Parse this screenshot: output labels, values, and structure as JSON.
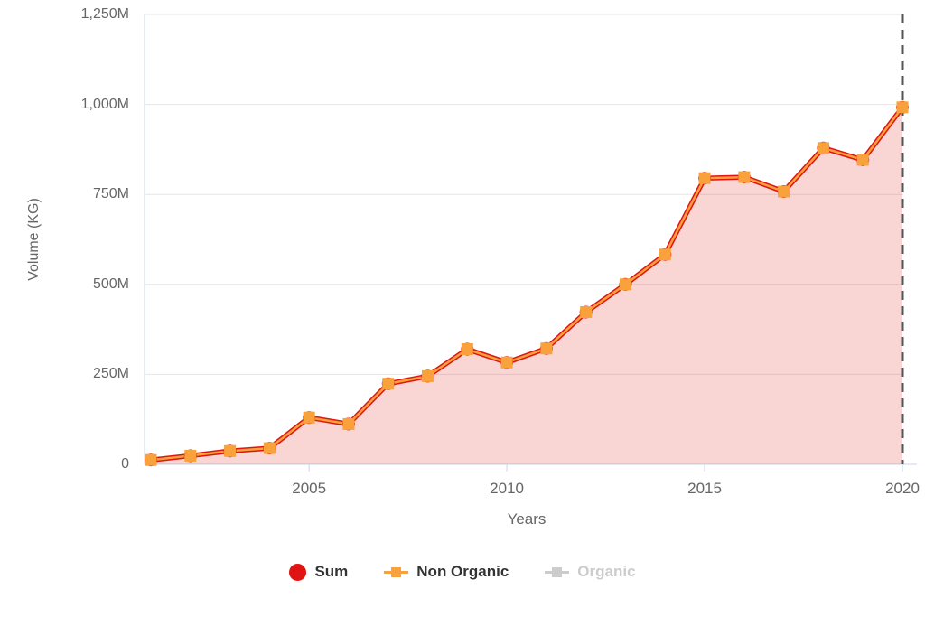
{
  "axes": {
    "y_title": "Volume (KG)",
    "x_title": "Years"
  },
  "legend": {
    "items": [
      {
        "label": "Sum",
        "marker": "circle",
        "color": "#e01412",
        "enabled": true
      },
      {
        "label": "Non Organic",
        "marker": "line-square",
        "color": "#f9a23b",
        "enabled": true
      },
      {
        "label": "Organic",
        "marker": "line-square",
        "color": "#cccccc",
        "enabled": false
      }
    ]
  },
  "chart_data": {
    "type": "area",
    "title": "",
    "xlabel": "Years",
    "ylabel": "Volume (KG)",
    "x": [
      2001,
      2002,
      2003,
      2004,
      2005,
      2006,
      2007,
      2008,
      2009,
      2010,
      2011,
      2012,
      2013,
      2014,
      2015,
      2016,
      2017,
      2018,
      2019,
      2020
    ],
    "series": [
      {
        "name": "Sum",
        "color": "#e01412",
        "marker": "circle",
        "marker_size": 14,
        "line_width": 5.5,
        "area_fill": "rgba(224,20,18,0.18)",
        "visible": true,
        "values": [
          12,
          24,
          37,
          45,
          130,
          112,
          224,
          245,
          320,
          283,
          322,
          423,
          500,
          583,
          795,
          798,
          758,
          879,
          846,
          992
        ]
      },
      {
        "name": "Non Organic",
        "color": "#f9a23b",
        "marker": "square",
        "marker_size": 13,
        "line_width": 2.5,
        "area_fill": null,
        "visible": true,
        "values": [
          12,
          24,
          37,
          45,
          130,
          112,
          224,
          245,
          320,
          283,
          322,
          423,
          500,
          583,
          795,
          798,
          758,
          879,
          846,
          992
        ]
      },
      {
        "name": "Organic",
        "color": "#cccccc",
        "marker": "square",
        "marker_size": 13,
        "line_width": 2.5,
        "area_fill": null,
        "visible": false,
        "values": null
      }
    ],
    "y_unit": "M",
    "ylim": [
      0,
      1250
    ],
    "yticks": [
      {
        "value": 0,
        "label": "0"
      },
      {
        "value": 250,
        "label": "250M"
      },
      {
        "value": 500,
        "label": "500M"
      },
      {
        "value": 750,
        "label": "750M"
      },
      {
        "value": 1000,
        "label": "1,000M"
      },
      {
        "value": 1250,
        "label": "1,250M"
      }
    ],
    "xticks": [
      {
        "value": 2005,
        "label": "2005"
      },
      {
        "value": 2010,
        "label": "2010"
      },
      {
        "value": 2015,
        "label": "2015"
      },
      {
        "value": 2020,
        "label": "2020"
      }
    ],
    "grid": true,
    "legend_position": "bottom",
    "annotations": [
      {
        "type": "vline",
        "x": 2020,
        "style": "dashed",
        "color": "#555555",
        "width": 3
      }
    ],
    "colors": {
      "grid": "#e6e6e6",
      "axis_line": "#ccd6eb",
      "tick_label": "#666666",
      "legend_text": "#333333",
      "legend_disabled": "#cccccc"
    }
  }
}
